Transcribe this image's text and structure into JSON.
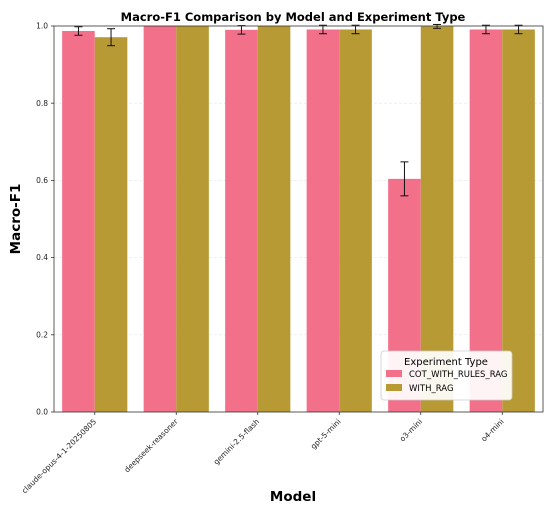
{
  "chart_data": {
    "type": "bar",
    "title": "Macro-F1 Comparison by Model and Experiment Type",
    "xlabel": "Model",
    "ylabel": "Macro-F1",
    "ylim": [
      0,
      1.0
    ],
    "yticks": [
      "0.0",
      "0.2",
      "0.4",
      "0.6",
      "0.8",
      "1.0"
    ],
    "categories": [
      "claude-opus-4-1-20250805",
      "deepseek-reasoner",
      "gemini-2.5-flash",
      "gpt-5-mini",
      "o3-mini",
      "o4-mini"
    ],
    "series": [
      {
        "name": "COT_WITH_RULES_RAG",
        "color": "#f2708a",
        "values": [
          0.987,
          1.0,
          0.99,
          0.991,
          0.604,
          0.991
        ],
        "errors": [
          0.011,
          0.0,
          0.011,
          0.011,
          0.044,
          0.011
        ]
      },
      {
        "name": "WITH_RAG",
        "color": "#b89a34",
        "values": [
          0.971,
          1.0,
          1.0,
          0.991,
          0.999,
          0.991
        ],
        "errors": [
          0.022,
          0.0,
          0.0,
          0.011,
          0.005,
          0.011
        ]
      }
    ],
    "grid": true,
    "legend": {
      "title": "Experiment Type",
      "placement": "lower-right"
    }
  }
}
